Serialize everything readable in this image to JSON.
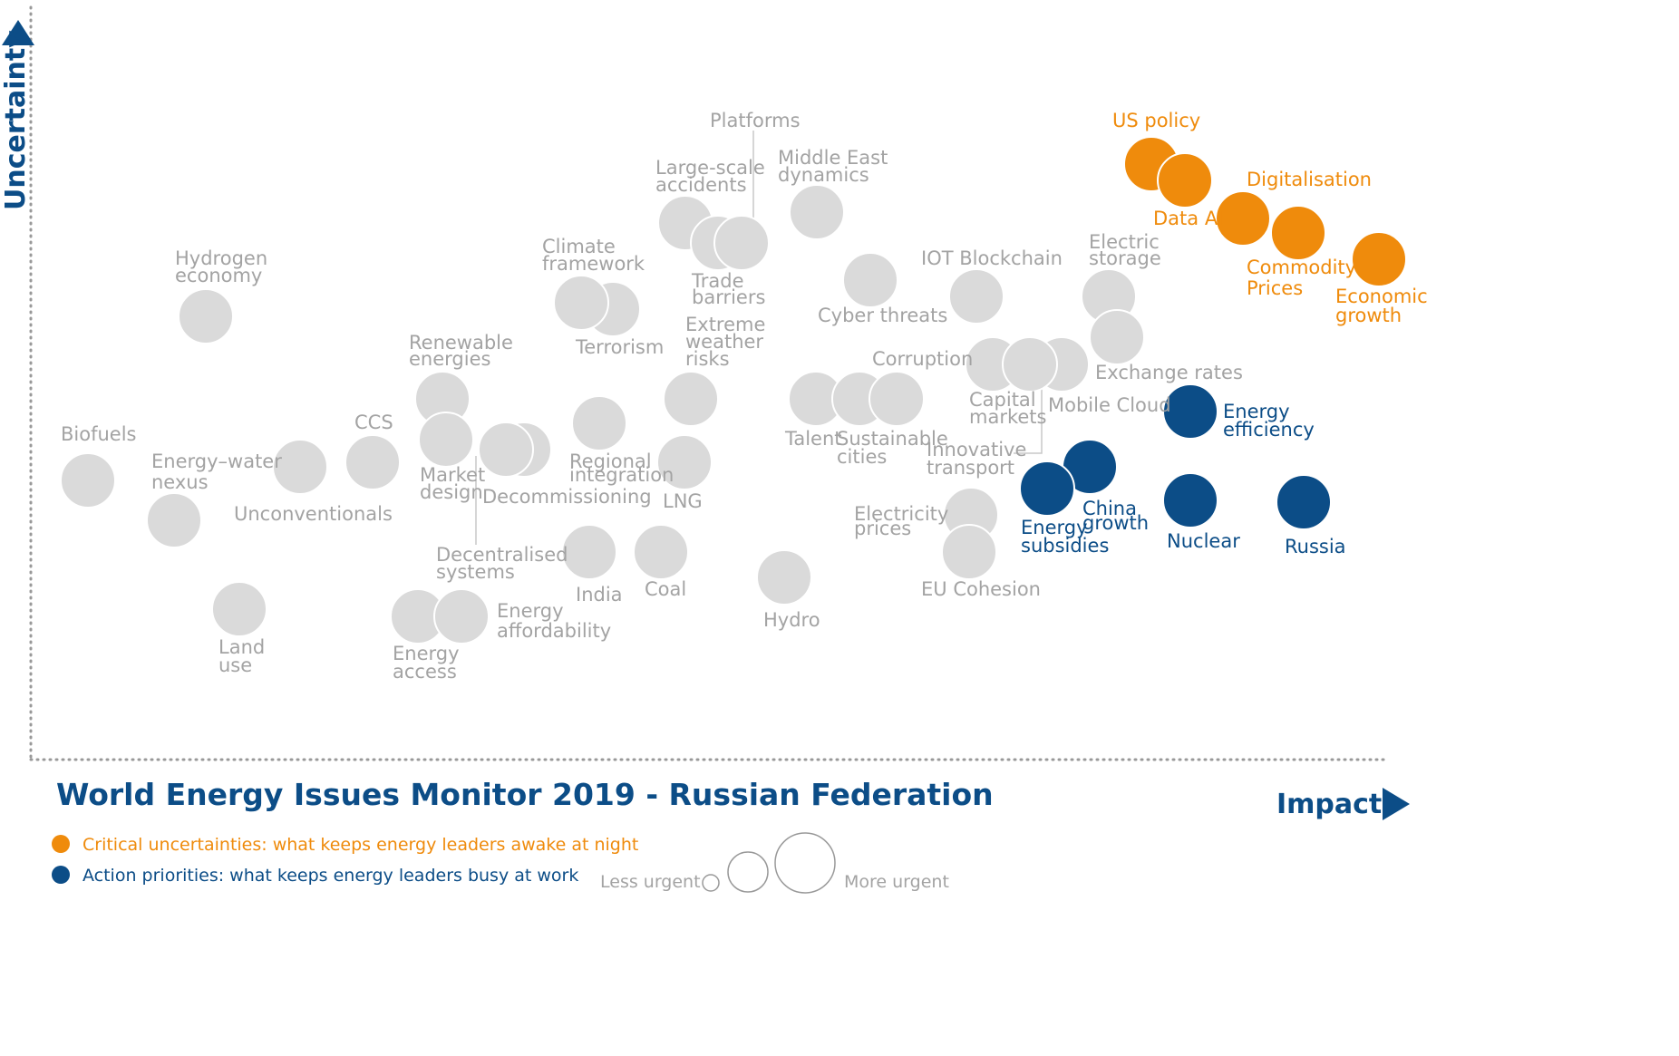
{
  "chart_data": {
    "type": "scatter",
    "title": "World Energy Issues Monitor 2019 - Russian Federation",
    "xlabel": "Impact",
    "ylabel": "Uncertainty",
    "colors": {
      "uncertainty": "#ef8b0c",
      "priority": "#0c4d87",
      "neutral": "#dadada",
      "label": "#a3a3a3",
      "axis": "#999999"
    },
    "legend": [
      {
        "group": "uncertainty",
        "label": "Critical uncertainties: what keeps energy leaders awake at night"
      },
      {
        "group": "priority",
        "label": "Action priorities: what keeps energy leaders busy at work"
      }
    ],
    "size_legend": {
      "less": "Less urgent",
      "more": "More urgent"
    },
    "points": [
      {
        "name": "US policy",
        "group": "uncertainty"
      },
      {
        "name": "Data AI",
        "group": "uncertainty"
      },
      {
        "name": "Digitalisation",
        "group": "uncertainty"
      },
      {
        "name": "Commodity Prices",
        "group": "uncertainty"
      },
      {
        "name": "Economic growth",
        "group": "uncertainty"
      },
      {
        "name": "Energy efficiency",
        "group": "priority"
      },
      {
        "name": "China growth",
        "group": "priority"
      },
      {
        "name": "Energy subsidies",
        "group": "priority"
      },
      {
        "name": "Nuclear",
        "group": "priority"
      },
      {
        "name": "Russia",
        "group": "priority"
      },
      {
        "name": "Biofuels",
        "group": "neutral"
      },
      {
        "name": "Energy–water nexus",
        "group": "neutral"
      },
      {
        "name": "Hydrogen economy",
        "group": "neutral"
      },
      {
        "name": "Unconventionals",
        "group": "neutral"
      },
      {
        "name": "CCS",
        "group": "neutral"
      },
      {
        "name": "Land use",
        "group": "neutral"
      },
      {
        "name": "Renewable energies",
        "group": "neutral"
      },
      {
        "name": "Market design",
        "group": "neutral"
      },
      {
        "name": "Decommissioning",
        "group": "neutral"
      },
      {
        "name": "Decentralised systems",
        "group": "neutral"
      },
      {
        "name": "Energy access",
        "group": "neutral"
      },
      {
        "name": "Energy affordability",
        "group": "neutral"
      },
      {
        "name": "Climate framework",
        "group": "neutral"
      },
      {
        "name": "Terrorism",
        "group": "neutral"
      },
      {
        "name": "Regional integration",
        "group": "neutral"
      },
      {
        "name": "India",
        "group": "neutral"
      },
      {
        "name": "Coal",
        "group": "neutral"
      },
      {
        "name": "LNG",
        "group": "neutral"
      },
      {
        "name": "Extreme weather risks",
        "group": "neutral"
      },
      {
        "name": "Large-scale accidents",
        "group": "neutral"
      },
      {
        "name": "Trade barriers",
        "group": "neutral"
      },
      {
        "name": "Platforms",
        "group": "neutral"
      },
      {
        "name": "Middle East dynamics",
        "group": "neutral"
      },
      {
        "name": "Hydro",
        "group": "neutral"
      },
      {
        "name": "Cyber threats",
        "group": "neutral"
      },
      {
        "name": "Talent",
        "group": "neutral"
      },
      {
        "name": "Sustainable cities",
        "group": "neutral"
      },
      {
        "name": "Corruption",
        "group": "neutral"
      },
      {
        "name": "IOT Blockchain",
        "group": "neutral"
      },
      {
        "name": "Capital markets",
        "group": "neutral"
      },
      {
        "name": "Mobile Cloud",
        "group": "neutral"
      },
      {
        "name": "Innovative transport",
        "group": "neutral"
      },
      {
        "name": "Electricity prices",
        "group": "neutral"
      },
      {
        "name": "EU Cohesion",
        "group": "neutral"
      },
      {
        "name": "Electric storage",
        "group": "neutral"
      },
      {
        "name": "Exchange rates",
        "group": "neutral"
      }
    ]
  }
}
